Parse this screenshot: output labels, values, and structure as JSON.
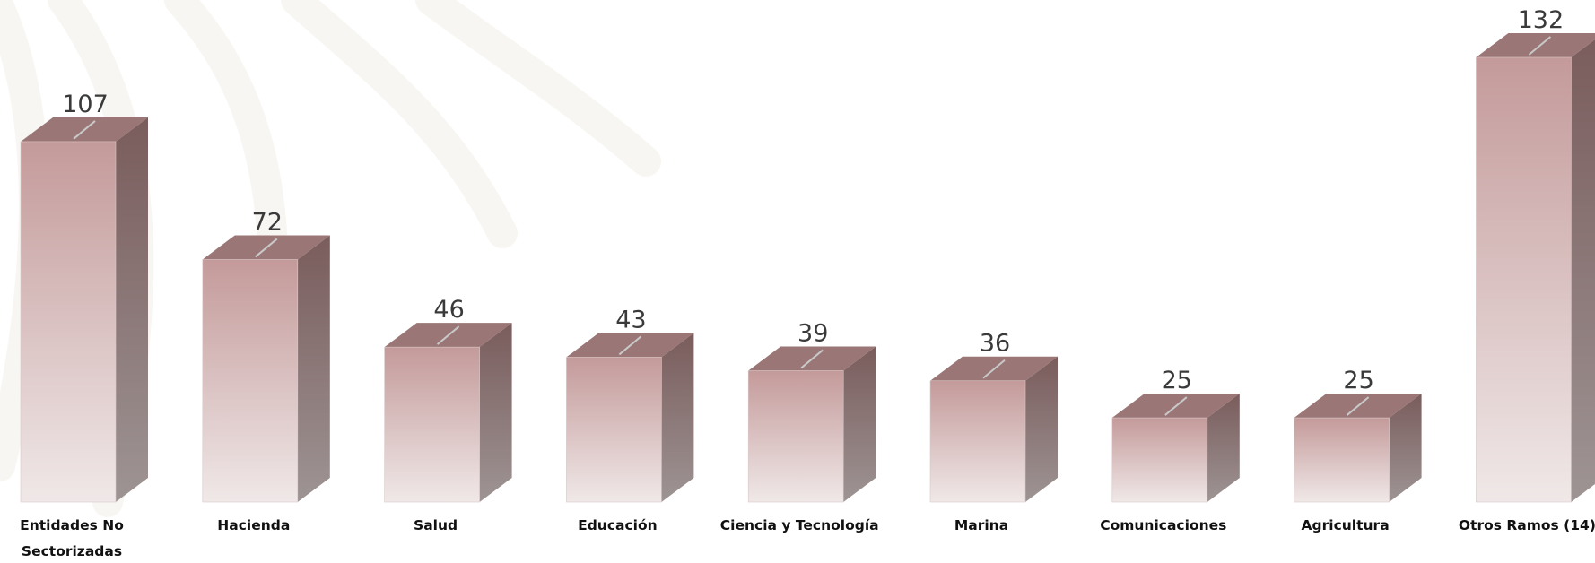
{
  "chart_data": {
    "type": "bar",
    "categories": [
      "Entidades No Sectorizadas",
      "Hacienda",
      "Salud",
      "Educación",
      "Ciencia y Tecnología",
      "Marina",
      "Comunicaciones",
      "Agricultura",
      "Otros Ramos (14)"
    ],
    "category_lines": [
      [
        "Entidades No",
        "Sectorizadas"
      ],
      [
        "Hacienda"
      ],
      [
        "Salud"
      ],
      [
        "Educación"
      ],
      [
        "Ciencia y Tecnología"
      ],
      [
        "Marina"
      ],
      [
        "Comunicaciones"
      ],
      [
        "Agricultura"
      ],
      [
        "Otros Ramos (14)"
      ]
    ],
    "values": [
      107,
      72,
      46,
      43,
      39,
      36,
      25,
      25,
      132
    ],
    "data_labels": [
      "107",
      "72",
      "46",
      "43",
      "39",
      "36",
      "25",
      "25",
      "132"
    ],
    "ylim": [
      0,
      132
    ],
    "grid": false,
    "legend": "none",
    "style": "3d-box",
    "title": "",
    "xlabel": "",
    "ylabel": ""
  },
  "colors": {
    "front_top": "#c49a9a",
    "front_bottom": "#f0e8e8",
    "side_top": "#7a5c5c",
    "side_bottom": "#9e9494",
    "top_face": "#9a7676",
    "value_label": "#3a3a3a",
    "category_label": "#111111",
    "background_mark": "#f3efe8"
  }
}
